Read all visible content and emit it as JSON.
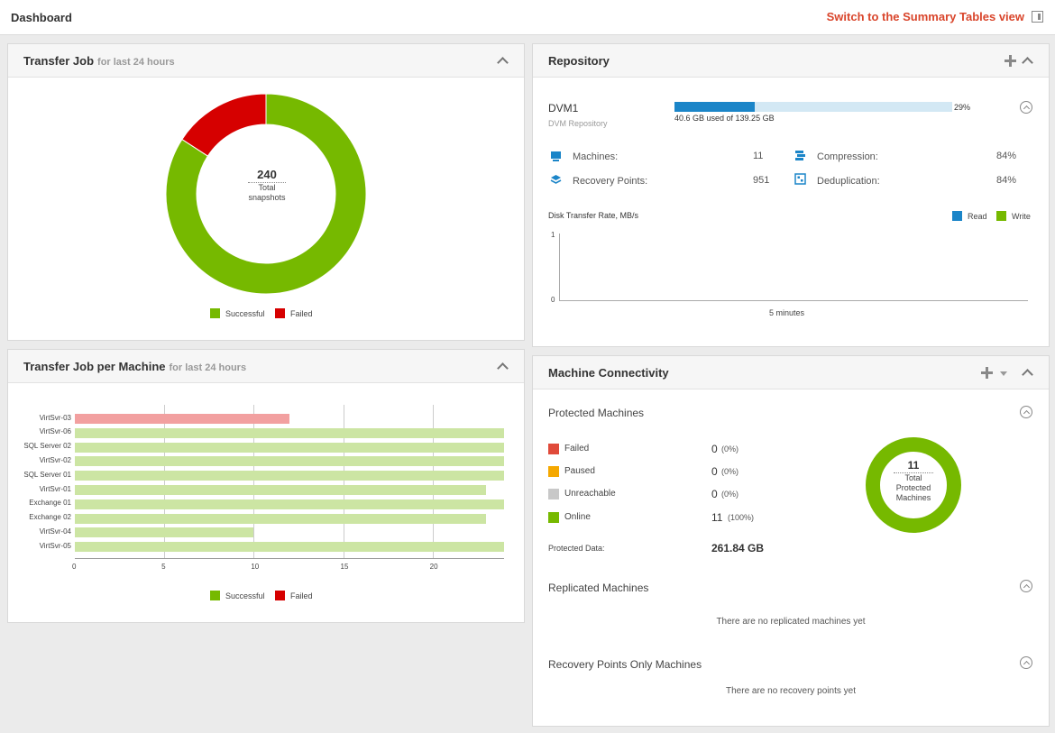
{
  "header": {
    "title": "Dashboard",
    "switch_label": "Switch to the Summary Tables view"
  },
  "transfer_job": {
    "title": "Transfer Job",
    "subtitle": "for last 24 hours",
    "total": "240",
    "total_label_1": "Total",
    "total_label_2": "snapshots",
    "legend_successful": "Successful",
    "legend_failed": "Failed",
    "colors": {
      "successful": "#76b900",
      "failed": "#d60000"
    }
  },
  "transfer_job_per_machine": {
    "title": "Transfer Job per Machine",
    "subtitle": "for last 24 hours",
    "legend_successful": "Successful",
    "legend_failed": "Failed"
  },
  "chart_data": [
    {
      "type": "pie",
      "title": "",
      "categories": [
        "Successful",
        "Failed"
      ],
      "values": [
        202,
        38
      ],
      "colors": [
        "#76b900",
        "#d60000"
      ],
      "center_text": "240 Total snapshots",
      "legend": "bottom"
    },
    {
      "type": "bar",
      "orientation": "horizontal",
      "categories": [
        "VirtSvr-03",
        "VirtSvr-06",
        "SQL Server 02",
        "VirtSvr-02",
        "SQL Server 01",
        "VirtSvr-01",
        "Exchange 01",
        "Exchange 02",
        "VirtSvr-04",
        "VirtSvr-05"
      ],
      "series": [
        {
          "name": "Successful",
          "values": [
            0,
            24,
            24,
            24,
            24,
            23,
            24,
            23,
            10,
            24
          ],
          "color": "#cce5a3"
        },
        {
          "name": "Failed",
          "values": [
            12,
            0,
            0,
            0,
            0,
            0,
            0,
            0,
            0,
            0
          ],
          "color": "#f2a0a0"
        }
      ],
      "xticks": [
        "0",
        "5",
        "10",
        "15",
        "20"
      ],
      "xlim": [
        0,
        24
      ],
      "grid": true,
      "legend": "bottom"
    },
    {
      "type": "line",
      "title": "Disk Transfer Rate, MB/s",
      "series": [
        {
          "name": "Read",
          "values": []
        },
        {
          "name": "Write",
          "values": []
        }
      ],
      "yticks": [
        "1",
        "0"
      ],
      "ylim": [
        0,
        1
      ],
      "xlabel": "5 minutes",
      "legend": "top-right"
    },
    {
      "type": "pie",
      "title": "",
      "categories": [
        "Online"
      ],
      "values": [
        11
      ],
      "colors": [
        "#76b900"
      ],
      "center_text": "11 Total Protected Machines"
    }
  ],
  "repository": {
    "title": "Repository",
    "name": "DVM1",
    "sub": "DVM Repository",
    "usage_pct": 0.29,
    "usage_pct_label": "29%",
    "usage_text": "40.6 GB used of 139.25 GB",
    "stats": {
      "machines_label": "Machines:",
      "machines_value": "11",
      "recovery_label": "Recovery Points:",
      "recovery_value": "951",
      "compression_label": "Compression:",
      "compression_value": "84%",
      "dedup_label": "Deduplication:",
      "dedup_value": "84%"
    },
    "rate_title": "Disk Transfer Rate, MB/s",
    "legend_read": "Read",
    "legend_write": "Write",
    "y_top": "1",
    "y_bottom": "0",
    "x_label": "5 minutes"
  },
  "connectivity": {
    "title": "Machine Connectivity",
    "protected_title": "Protected Machines",
    "rows": [
      {
        "label": "Failed",
        "count": "0",
        "pct": "(0%)",
        "color": "#e04a3a"
      },
      {
        "label": "Paused",
        "count": "0",
        "pct": "(0%)",
        "color": "#f5a800"
      },
      {
        "label": "Unreachable",
        "count": "0",
        "pct": "(0%)",
        "color": "#c8c8c8"
      },
      {
        "label": "Online",
        "count": "11",
        "pct": "(100%)",
        "color": "#76b900"
      }
    ],
    "protected_data_label": "Protected Data:",
    "protected_data_value": "261.84 GB",
    "donut_total": "11",
    "donut_l1": "Total",
    "donut_l2": "Protected",
    "donut_l3": "Machines",
    "replicated_title": "Replicated Machines",
    "replicated_empty": "There are no replicated machines yet",
    "recovery_only_title": "Recovery Points Only Machines",
    "recovery_only_empty": "There are no recovery points yet"
  }
}
